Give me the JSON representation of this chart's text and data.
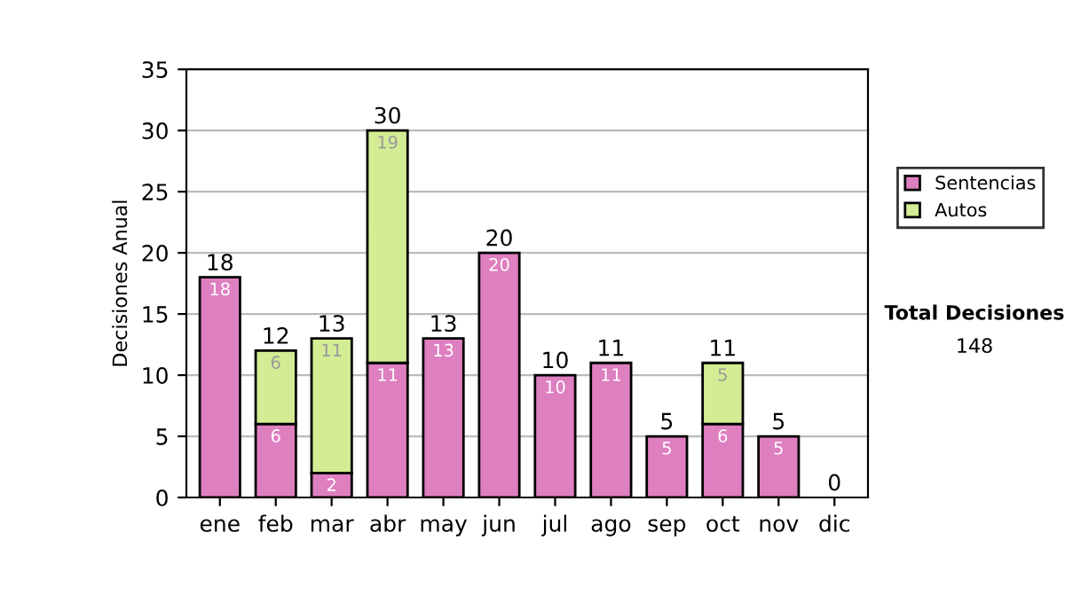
{
  "chart_data": {
    "type": "bar",
    "ylabel": "Decisiones Anual",
    "stacked": true,
    "categories": [
      "ene",
      "feb",
      "mar",
      "abr",
      "may",
      "jun",
      "jul",
      "ago",
      "sep",
      "oct",
      "nov",
      "dic"
    ],
    "series": [
      {
        "name": "Sentencias",
        "color": "#de7fc0",
        "values": [
          18,
          6,
          2,
          11,
          13,
          20,
          10,
          11,
          5,
          6,
          5,
          0
        ],
        "value_labels": [
          "18",
          "6",
          "2",
          "11",
          "13",
          "20",
          "10",
          "11",
          "5",
          "6",
          "5",
          null
        ]
      },
      {
        "name": "Autos",
        "color": "#d4ec94",
        "values": [
          0,
          6,
          11,
          19,
          0,
          0,
          0,
          0,
          0,
          5,
          0,
          0
        ],
        "value_labels": [
          null,
          "6",
          "11",
          "19",
          null,
          null,
          null,
          null,
          null,
          "5",
          null,
          null
        ]
      }
    ],
    "totals": [
      "18",
      "12",
      "13",
      "30",
      "13",
      "20",
      "10",
      "11",
      "5",
      "11",
      "5",
      "0"
    ],
    "ylim": [
      0,
      35
    ],
    "yticks": [
      0,
      5,
      10,
      15,
      20,
      25,
      30,
      35
    ],
    "grid": "y",
    "legend": "right",
    "annotations": [
      "Total Decisiones",
      "148"
    ]
  }
}
